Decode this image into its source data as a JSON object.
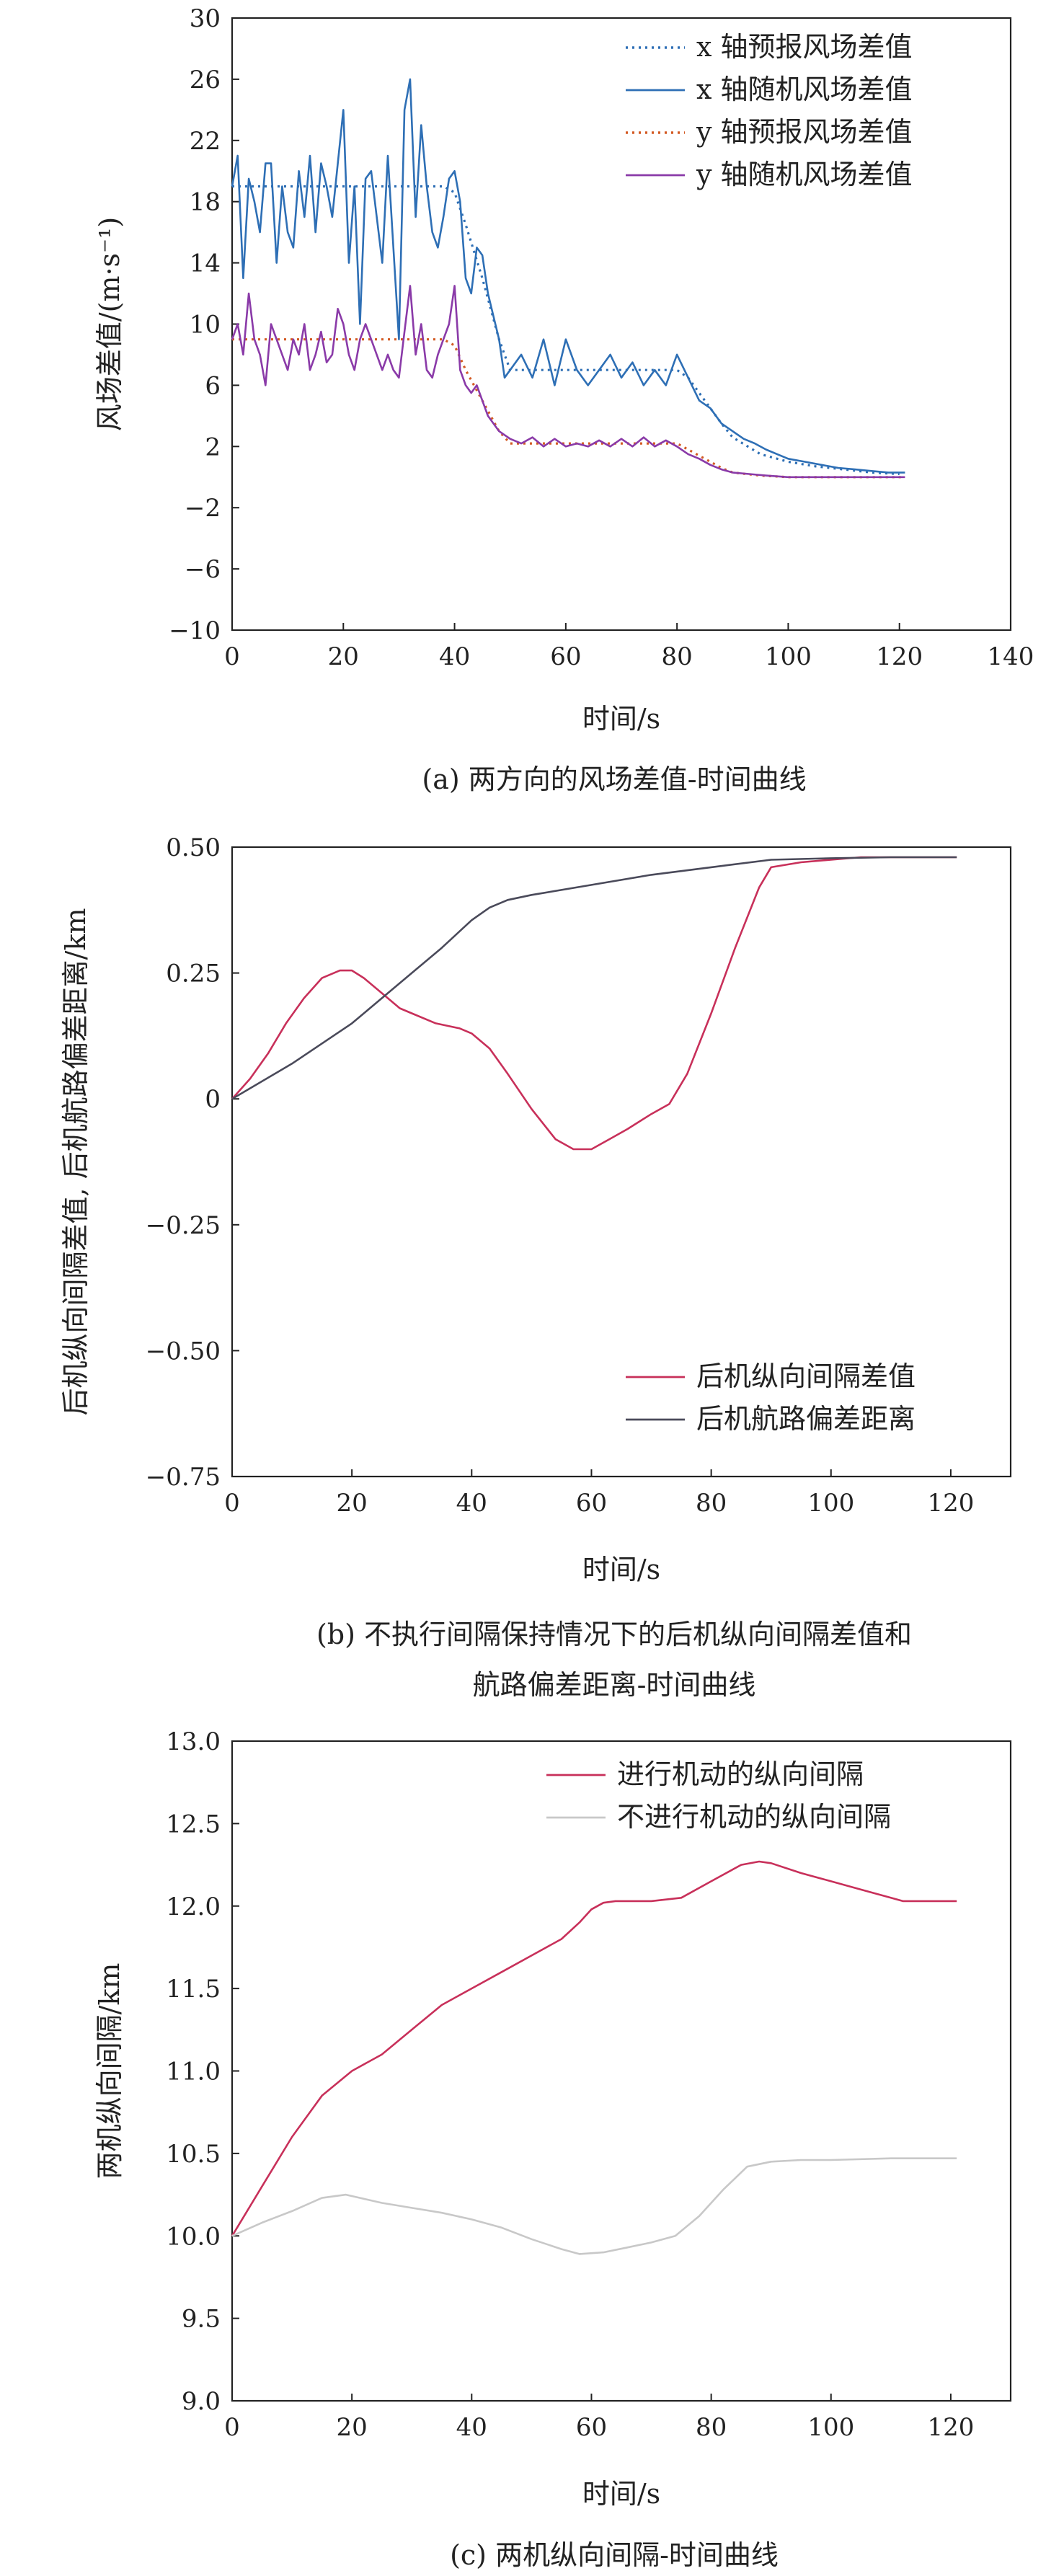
{
  "chart_data": [
    {
      "type": "line",
      "caption": "(a) 两方向的风场差值-时间曲线",
      "xlabel": "时间/s",
      "ylabel": "风场差值/(m·s⁻¹)",
      "xlim": [
        0,
        140
      ],
      "ylim": [
        -10,
        30
      ],
      "xticks": [
        0,
        20,
        40,
        60,
        80,
        100,
        120,
        140
      ],
      "yticks": [
        -10,
        -6,
        -2,
        2,
        6,
        10,
        14,
        18,
        22,
        26,
        30
      ],
      "legend_position": "top-right",
      "series": [
        {
          "name": "x 轴预报风场差值",
          "color": "#2e6fb5",
          "dash": "dotted",
          "x": [
            0,
            5,
            10,
            15,
            20,
            25,
            30,
            35,
            38,
            40,
            42,
            45,
            48,
            50,
            55,
            60,
            65,
            70,
            75,
            80,
            82,
            85,
            88,
            90,
            95,
            100,
            105,
            110,
            115,
            120
          ],
          "y": [
            19,
            19,
            19,
            19,
            19,
            19,
            19,
            19,
            19,
            18.6,
            16.5,
            13,
            9,
            7,
            7,
            7,
            7,
            7,
            7,
            7,
            6.5,
            5,
            3.5,
            2.6,
            1.5,
            1,
            0.7,
            0.5,
            0.3,
            0.2
          ]
        },
        {
          "name": "x 轴随机风场差值",
          "color": "#2e6fb5",
          "dash": "solid",
          "x": [
            0,
            1,
            2,
            3,
            4,
            5,
            6,
            7,
            8,
            9,
            10,
            11,
            12,
            13,
            14,
            15,
            16,
            17,
            18,
            19,
            20,
            21,
            22,
            23,
            24,
            25,
            26,
            27,
            28,
            29,
            30,
            31,
            32,
            33,
            34,
            35,
            36,
            37,
            38,
            39,
            40,
            41,
            42,
            43,
            44,
            45,
            46,
            47,
            48,
            49,
            50,
            52,
            54,
            56,
            58,
            60,
            62,
            64,
            66,
            68,
            70,
            72,
            74,
            76,
            78,
            80,
            82,
            84,
            86,
            88,
            90,
            92,
            94,
            96,
            98,
            100,
            103,
            106,
            109,
            112,
            115,
            118,
            121
          ],
          "y": [
            19,
            21,
            13,
            19.5,
            18,
            16,
            20.5,
            20.5,
            14,
            19,
            16,
            15,
            20,
            17,
            21,
            16,
            20.5,
            19,
            17,
            20.5,
            24,
            14,
            19,
            10,
            19.5,
            20,
            17,
            14,
            21,
            15,
            9,
            24,
            26,
            17,
            23,
            19,
            16,
            15,
            17,
            19.5,
            20,
            18,
            13,
            12,
            15,
            14.5,
            12,
            10.5,
            9,
            6.5,
            7,
            8,
            6.5,
            9,
            6,
            9,
            7,
            6,
            7,
            8,
            6.5,
            7.5,
            6,
            7,
            6,
            8,
            6.5,
            5,
            4.5,
            3.5,
            3,
            2.5,
            2.2,
            1.8,
            1.5,
            1.2,
            1,
            0.8,
            0.6,
            0.5,
            0.4,
            0.3,
            0.3
          ]
        },
        {
          "name": "y 轴预报风场差值",
          "color": "#d35a23",
          "dash": "dotted",
          "x": [
            0,
            5,
            10,
            15,
            20,
            25,
            30,
            35,
            38,
            40,
            42,
            45,
            48,
            50,
            55,
            60,
            65,
            70,
            75,
            80,
            82,
            85,
            88,
            90,
            95,
            100,
            110,
            121
          ],
          "y": [
            9,
            9,
            9,
            9,
            9,
            9,
            9,
            9,
            9,
            8.6,
            7,
            5,
            3,
            2.2,
            2.2,
            2.2,
            2.2,
            2.2,
            2.2,
            2.2,
            1.8,
            1.2,
            0.6,
            0.3,
            0.1,
            0,
            0,
            0
          ]
        },
        {
          "name": "y 轴随机风场差值",
          "color": "#8a3aa8",
          "dash": "solid",
          "x": [
            0,
            1,
            2,
            3,
            4,
            5,
            6,
            7,
            8,
            9,
            10,
            11,
            12,
            13,
            14,
            15,
            16,
            17,
            18,
            19,
            20,
            21,
            22,
            23,
            24,
            25,
            26,
            27,
            28,
            29,
            30,
            31,
            32,
            33,
            34,
            35,
            36,
            37,
            38,
            39,
            40,
            41,
            42,
            43,
            44,
            45,
            46,
            47,
            48,
            50,
            52,
            54,
            56,
            58,
            60,
            62,
            64,
            66,
            68,
            70,
            72,
            74,
            76,
            78,
            80,
            82,
            84,
            86,
            88,
            90,
            93,
            96,
            100,
            105,
            110,
            115,
            121
          ],
          "y": [
            9,
            10,
            8,
            12,
            9,
            8,
            6,
            10,
            9,
            8,
            7,
            9,
            8,
            10,
            7,
            8,
            9.5,
            7.5,
            8,
            11,
            10,
            8,
            7,
            9,
            10,
            9,
            8,
            7,
            8,
            7,
            6.5,
            9.5,
            12.5,
            8,
            10,
            7,
            6.5,
            8,
            9,
            10,
            12.5,
            7,
            6,
            5.5,
            6,
            5,
            4,
            3.5,
            3,
            2.5,
            2.2,
            2.6,
            2,
            2.5,
            2,
            2.2,
            2,
            2.4,
            2,
            2.5,
            2,
            2.6,
            2,
            2.4,
            2,
            1.5,
            1.2,
            0.8,
            0.5,
            0.3,
            0.2,
            0.1,
            0,
            0,
            0,
            0,
            0
          ]
        }
      ]
    },
    {
      "type": "line",
      "caption": "(b) 不执行间隔保持情况下的后机纵向间隔差值和 航路偏差距离-时间曲线",
      "caption_lines": [
        "(b) 不执行间隔保持情况下的后机纵向间隔差值和",
        "航路偏差距离-时间曲线"
      ],
      "xlabel": "时间/s",
      "ylabel": "后机纵向间隔差值, 后机航路偏差距离/km",
      "xlim": [
        0,
        130
      ],
      "ylim": [
        -0.75,
        0.5
      ],
      "xticks": [
        0,
        20,
        40,
        60,
        80,
        100,
        120
      ],
      "yticks": [
        -0.75,
        -0.5,
        -0.25,
        0,
        0.25,
        0.5
      ],
      "ytick_labels": [
        "−0.75",
        "−0.50",
        "−0.25",
        "0",
        "0.25",
        "0.50"
      ],
      "legend_position": "bottom-right",
      "series": [
        {
          "name": "后机纵向间隔差值",
          "color": "#c8305a",
          "x": [
            0,
            3,
            6,
            9,
            12,
            15,
            18,
            20,
            22,
            25,
            28,
            30,
            34,
            38,
            40,
            43,
            46,
            50,
            54,
            57,
            60,
            63,
            66,
            70,
            73,
            76,
            80,
            84,
            88,
            90,
            95,
            100,
            105,
            110,
            115,
            121
          ],
          "y": [
            0,
            0.04,
            0.09,
            0.15,
            0.2,
            0.24,
            0.255,
            0.255,
            0.24,
            0.21,
            0.18,
            0.17,
            0.15,
            0.14,
            0.13,
            0.1,
            0.05,
            -0.02,
            -0.08,
            -0.1,
            -0.1,
            -0.08,
            -0.06,
            -0.03,
            -0.01,
            0.05,
            0.17,
            0.3,
            0.42,
            0.46,
            0.47,
            0.475,
            0.48,
            0.48,
            0.48,
            0.48
          ]
        },
        {
          "name": "后机航路偏差距离",
          "color": "#4a4a5a",
          "x": [
            0,
            10,
            20,
            30,
            35,
            40,
            43,
            46,
            50,
            60,
            70,
            80,
            90,
            100,
            110,
            121
          ],
          "y": [
            0,
            0.07,
            0.15,
            0.25,
            0.3,
            0.355,
            0.38,
            0.395,
            0.405,
            0.425,
            0.445,
            0.46,
            0.475,
            0.478,
            0.48,
            0.48
          ]
        }
      ]
    },
    {
      "type": "line",
      "caption": "(c) 两机纵向间隔-时间曲线",
      "xlabel": "时间/s",
      "ylabel": "两机纵向间隔/km",
      "xlim": [
        0,
        130
      ],
      "ylim": [
        9.0,
        13.0
      ],
      "xticks": [
        0,
        20,
        40,
        60,
        80,
        100,
        120
      ],
      "yticks": [
        9.0,
        9.5,
        10.0,
        10.5,
        11.0,
        11.5,
        12.0,
        12.5,
        13.0
      ],
      "ytick_labels": [
        "9.0",
        "9.5",
        "10.0",
        "10.5",
        "11.0",
        "11.5",
        "12.0",
        "12.5",
        "13.0"
      ],
      "legend_position": "top-right",
      "series": [
        {
          "name": "进行机动的纵向间隔",
          "color": "#c8305a",
          "x": [
            0,
            5,
            10,
            15,
            20,
            25,
            30,
            35,
            40,
            45,
            50,
            55,
            58,
            60,
            62,
            64,
            70,
            75,
            80,
            85,
            88,
            90,
            95,
            100,
            105,
            110,
            112,
            115,
            121
          ],
          "y": [
            10.0,
            10.3,
            10.6,
            10.85,
            11.0,
            11.1,
            11.25,
            11.4,
            11.5,
            11.6,
            11.7,
            11.8,
            11.9,
            11.98,
            12.02,
            12.03,
            12.03,
            12.05,
            12.15,
            12.25,
            12.27,
            12.26,
            12.2,
            12.15,
            12.1,
            12.05,
            12.03,
            12.03,
            12.03
          ]
        },
        {
          "name": "不进行机动的纵向间隔",
          "color": "#c8c8c8",
          "x": [
            0,
            5,
            10,
            15,
            19,
            25,
            30,
            35,
            40,
            45,
            50,
            55,
            58,
            62,
            66,
            70,
            74,
            78,
            82,
            86,
            90,
            95,
            100,
            110,
            121
          ],
          "y": [
            10.0,
            10.08,
            10.15,
            10.23,
            10.25,
            10.2,
            10.17,
            10.14,
            10.1,
            10.05,
            9.98,
            9.92,
            9.89,
            9.9,
            9.93,
            9.96,
            10.0,
            10.12,
            10.28,
            10.42,
            10.45,
            10.46,
            10.46,
            10.47,
            10.47
          ]
        }
      ]
    }
  ]
}
